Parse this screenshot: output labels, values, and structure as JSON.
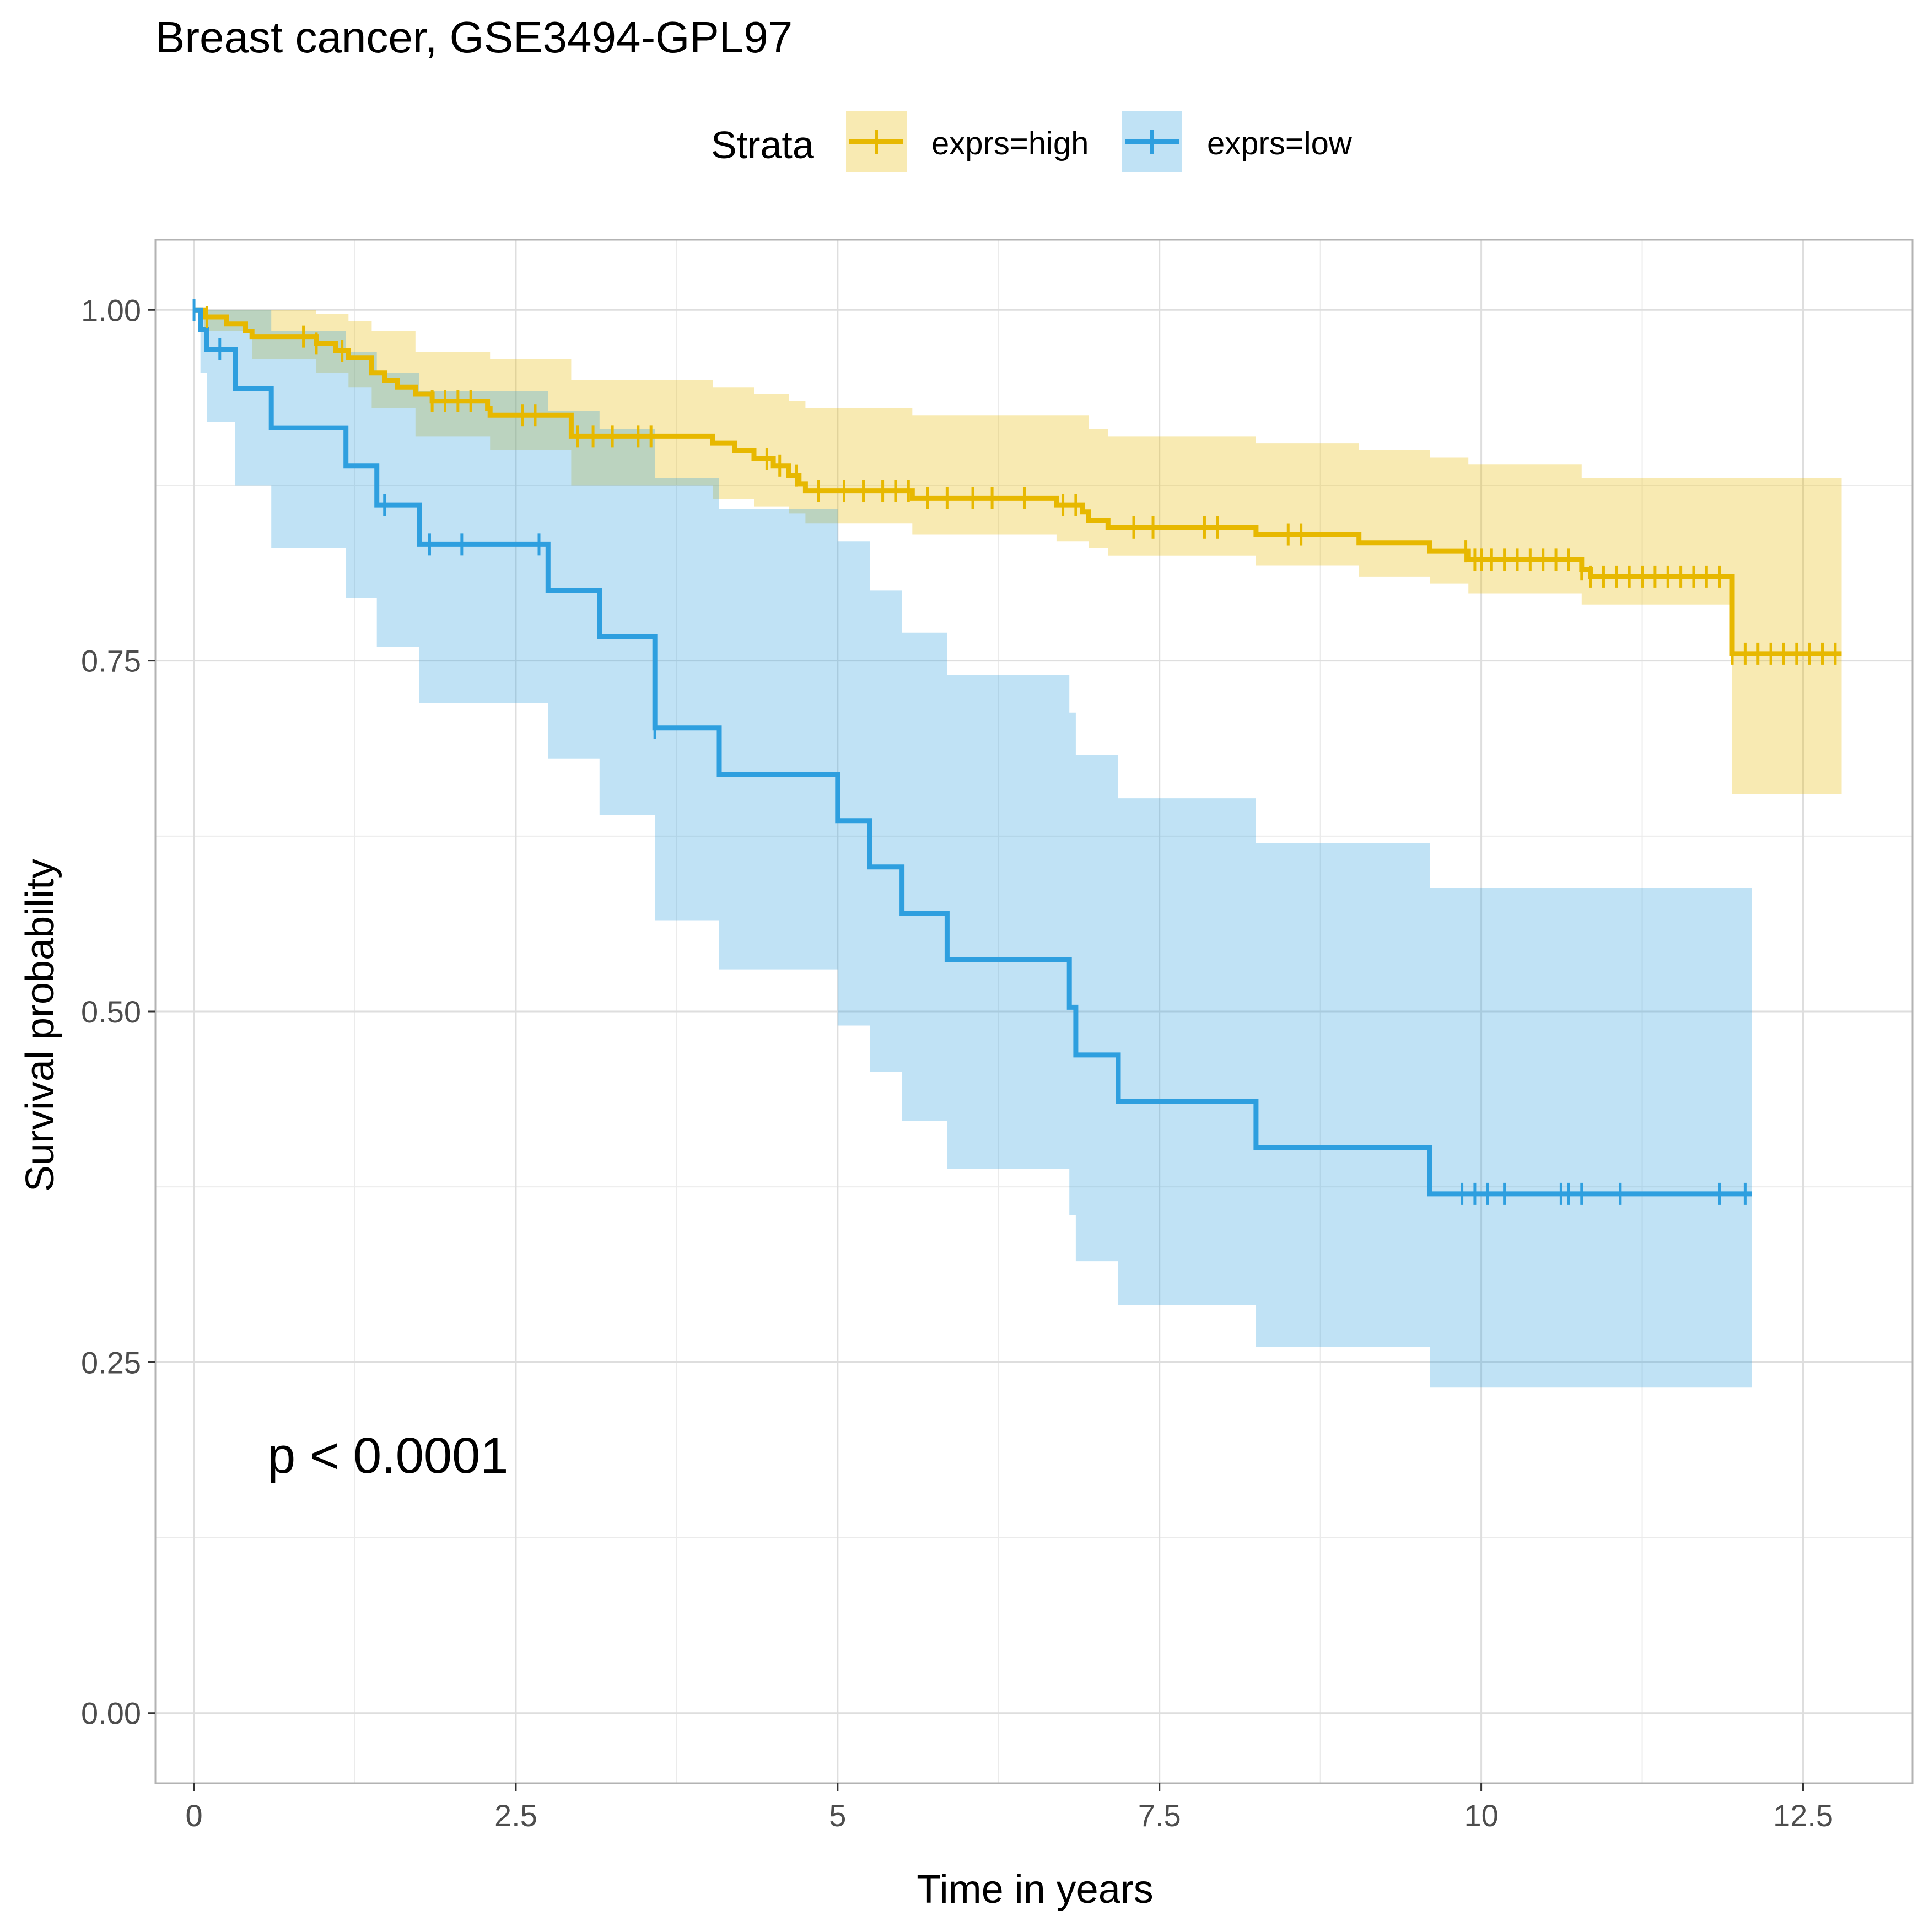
{
  "colors": {
    "high": "#E7B800",
    "low": "#2E9FDF",
    "grid": "#EBEBEB",
    "panel_border": "#B3B3B3",
    "text": "#000000",
    "tick_text": "#4D4D4D"
  },
  "chart_data": {
    "type": "line",
    "subtype": "kaplan-meier survival curve with confidence bands",
    "title": "Breast cancer, GSE3494-GPL97",
    "xlabel": "Time in years",
    "ylabel": "Survival probability",
    "xlim": [
      -0.3,
      13.35
    ],
    "ylim": [
      -0.05,
      1.05
    ],
    "x_ticks": [
      0,
      2.5,
      5,
      7.5,
      10,
      12.5
    ],
    "x_tick_labels": [
      "0",
      "2.5",
      "5",
      "7.5",
      "10",
      "12.5"
    ],
    "y_ticks": [
      0,
      0.25,
      0.5,
      0.75,
      1.0
    ],
    "y_tick_labels": [
      "0.00",
      "0.25",
      "0.50",
      "0.75",
      "1.00"
    ],
    "grid": true,
    "legend": {
      "title": "Strata",
      "position": "top",
      "entries": [
        "exprs=high",
        "exprs=low"
      ]
    },
    "annotation": "p < 0.0001",
    "series": [
      {
        "name": "exprs=high",
        "color_key": "high",
        "steps": [
          [
            0.0,
            1.0
          ],
          [
            0.08,
            0.995
          ],
          [
            0.25,
            0.99
          ],
          [
            0.4,
            0.985
          ],
          [
            0.45,
            0.981
          ],
          [
            0.95,
            0.976
          ],
          [
            1.1,
            0.971
          ],
          [
            1.2,
            0.966
          ],
          [
            1.38,
            0.955
          ],
          [
            1.48,
            0.95
          ],
          [
            1.58,
            0.945
          ],
          [
            1.72,
            0.94
          ],
          [
            1.85,
            0.935
          ],
          [
            2.28,
            0.93
          ],
          [
            2.3,
            0.925
          ],
          [
            2.93,
            0.91
          ],
          [
            4.03,
            0.905
          ],
          [
            4.2,
            0.9
          ],
          [
            4.35,
            0.894
          ],
          [
            4.5,
            0.889
          ],
          [
            4.62,
            0.882
          ],
          [
            4.7,
            0.876
          ],
          [
            4.75,
            0.871
          ],
          [
            5.58,
            0.866
          ],
          [
            6.35,
            0.866
          ],
          [
            6.7,
            0.861
          ],
          [
            6.9,
            0.856
          ],
          [
            6.95,
            0.85
          ],
          [
            7.1,
            0.845
          ],
          [
            8.25,
            0.84
          ],
          [
            9.05,
            0.834
          ],
          [
            9.6,
            0.828
          ],
          [
            9.9,
            0.822
          ],
          [
            10.78,
            0.815
          ],
          [
            10.85,
            0.81
          ],
          [
            11.95,
            0.755
          ],
          [
            12.8,
            0.755
          ]
        ],
        "ci": [
          [
            0.0,
            1.0,
            1.0
          ],
          [
            0.08,
            1.0,
            0.985
          ],
          [
            0.45,
            1.0,
            0.965
          ],
          [
            0.95,
            0.997,
            0.955
          ],
          [
            1.2,
            0.992,
            0.945
          ],
          [
            1.38,
            0.985,
            0.93
          ],
          [
            1.72,
            0.97,
            0.91
          ],
          [
            2.3,
            0.965,
            0.9
          ],
          [
            2.93,
            0.95,
            0.875
          ],
          [
            3.55,
            0.95,
            0.875
          ],
          [
            4.03,
            0.945,
            0.865
          ],
          [
            4.35,
            0.94,
            0.86
          ],
          [
            4.62,
            0.935,
            0.855
          ],
          [
            4.75,
            0.93,
            0.848
          ],
          [
            5.58,
            0.925,
            0.84
          ],
          [
            6.7,
            0.925,
            0.835
          ],
          [
            6.95,
            0.915,
            0.83
          ],
          [
            7.1,
            0.91,
            0.825
          ],
          [
            8.25,
            0.905,
            0.818
          ],
          [
            9.05,
            0.9,
            0.81
          ],
          [
            9.6,
            0.895,
            0.805
          ],
          [
            9.9,
            0.89,
            0.798
          ],
          [
            10.78,
            0.88,
            0.79
          ],
          [
            11.95,
            0.88,
            0.655
          ],
          [
            12.8,
            0.88,
            0.655
          ]
        ],
        "censor_times": [
          0.1,
          0.85,
          0.95,
          1.15,
          1.85,
          1.95,
          2.05,
          2.15,
          2.55,
          2.65,
          2.98,
          3.1,
          3.25,
          3.45,
          3.55,
          4.45,
          4.55,
          4.68,
          4.85,
          5.05,
          5.2,
          5.35,
          5.45,
          5.55,
          5.7,
          5.85,
          6.05,
          6.2,
          6.45,
          6.75,
          6.85,
          7.3,
          7.45,
          7.85,
          7.95,
          8.5,
          8.6,
          9.88,
          9.95,
          10.0,
          10.08,
          10.18,
          10.28,
          10.38,
          10.48,
          10.58,
          10.68,
          10.78,
          10.85,
          10.95,
          11.05,
          11.15,
          11.25,
          11.35,
          11.45,
          11.55,
          11.65,
          11.75,
          11.85,
          11.95,
          12.05,
          12.15,
          12.25,
          12.35,
          12.45,
          12.55,
          12.65,
          12.75
        ]
      },
      {
        "name": "exprs=low",
        "color_key": "low",
        "steps": [
          [
            0.0,
            1.0
          ],
          [
            0.05,
            0.986
          ],
          [
            0.1,
            0.972
          ],
          [
            0.32,
            0.944
          ],
          [
            0.6,
            0.916
          ],
          [
            1.18,
            0.889
          ],
          [
            1.42,
            0.861
          ],
          [
            1.75,
            0.833
          ],
          [
            2.75,
            0.8
          ],
          [
            3.15,
            0.767
          ],
          [
            3.58,
            0.702
          ],
          [
            4.08,
            0.669
          ],
          [
            5.0,
            0.636
          ],
          [
            5.25,
            0.603
          ],
          [
            5.5,
            0.57
          ],
          [
            5.85,
            0.537
          ],
          [
            6.8,
            0.503
          ],
          [
            6.85,
            0.469
          ],
          [
            7.18,
            0.436
          ],
          [
            8.25,
            0.403
          ],
          [
            9.6,
            0.37
          ],
          [
            12.1,
            0.37
          ]
        ],
        "ci": [
          [
            0.0,
            1.0,
            1.0
          ],
          [
            0.05,
            1.0,
            0.955
          ],
          [
            0.1,
            1.0,
            0.92
          ],
          [
            0.32,
            1.0,
            0.875
          ],
          [
            0.6,
            0.985,
            0.83
          ],
          [
            1.18,
            0.97,
            0.795
          ],
          [
            1.42,
            0.955,
            0.76
          ],
          [
            1.75,
            0.942,
            0.72
          ],
          [
            2.75,
            0.928,
            0.68
          ],
          [
            3.15,
            0.915,
            0.64
          ],
          [
            3.58,
            0.88,
            0.565
          ],
          [
            4.08,
            0.858,
            0.53
          ],
          [
            5.0,
            0.835,
            0.49
          ],
          [
            5.25,
            0.8,
            0.457
          ],
          [
            5.5,
            0.77,
            0.422
          ],
          [
            5.85,
            0.74,
            0.388
          ],
          [
            6.8,
            0.713,
            0.355
          ],
          [
            6.85,
            0.683,
            0.322
          ],
          [
            7.18,
            0.652,
            0.291
          ],
          [
            8.25,
            0.62,
            0.261
          ],
          [
            9.6,
            0.588,
            0.232
          ],
          [
            12.1,
            0.588,
            0.232
          ]
        ],
        "censor_times": [
          0.0,
          0.2,
          1.48,
          1.83,
          2.08,
          2.68,
          3.58,
          9.85,
          9.95,
          10.05,
          10.18,
          10.62,
          10.68,
          10.78,
          11.08,
          11.85,
          12.05
        ]
      }
    ]
  }
}
